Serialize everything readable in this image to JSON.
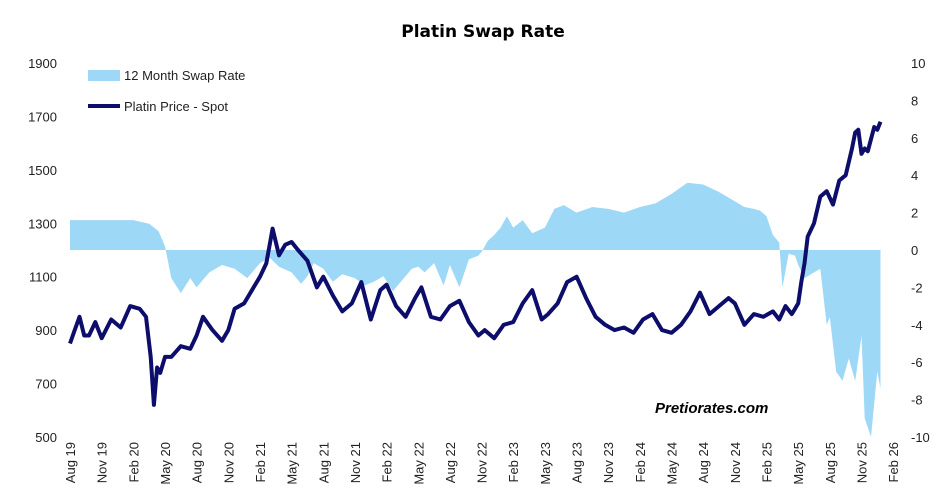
{
  "chart_data": {
    "type": "line",
    "title": "Platin Swap Rate",
    "watermark": "Pretiorates.com",
    "colors": {
      "spot": "#0d0d6b",
      "swap": "#9ed8f7"
    },
    "left_axis": {
      "ylim": [
        500,
        1900
      ],
      "ticks": [
        "1900",
        "1700",
        "1500",
        "1300",
        "1100",
        "900",
        "700",
        "500"
      ]
    },
    "right_axis": {
      "ylim": [
        -10,
        10
      ],
      "ticks": [
        "10",
        "8",
        "6",
        "4",
        "2",
        "0",
        "-2",
        "-4",
        "-6",
        "-8",
        "-10"
      ]
    },
    "x_ticks": [
      "Aug 19",
      "Nov 19",
      "Feb 20",
      "May 20",
      "Aug 20",
      "Nov 20",
      "Feb 21",
      "May 21",
      "Aug 21",
      "Nov 21",
      "Feb 22",
      "May 22",
      "Aug 22",
      "Nov 22",
      "Feb 23",
      "May 23",
      "Aug 23",
      "Nov 23",
      "Feb 24",
      "May 24",
      "Aug 24",
      "Nov 24",
      "Feb 25",
      "May 25",
      "Aug 25",
      "Nov 25",
      "Feb 26"
    ],
    "series": [
      {
        "name": "12 Month Swap Rate",
        "axis": "right",
        "type": "area",
        "x": [
          0.0,
          0.5,
          1.0,
          2.0,
          2.5,
          2.8,
          3.0,
          3.2,
          3.5,
          3.8,
          4.0,
          4.4,
          4.8,
          5.2,
          5.6,
          6.0,
          6.3,
          6.6,
          7.0,
          7.3,
          7.5,
          7.7,
          8.0,
          8.3,
          8.6,
          9.0,
          9.3,
          9.6,
          9.9,
          10.2,
          10.5,
          10.8,
          11.0,
          11.2,
          11.5,
          11.8,
          12.0,
          12.3,
          12.6,
          12.9,
          13.0,
          13.2,
          13.4,
          13.6,
          13.8,
          14.0,
          14.3,
          14.6,
          15.0,
          15.3,
          15.6,
          16.0,
          16.5,
          17.0,
          17.5,
          18.0,
          18.5,
          19.0,
          19.5,
          20.0,
          20.5,
          21.0,
          21.3,
          21.6,
          21.8,
          22.0,
          22.2,
          22.4,
          22.5,
          22.7,
          22.9,
          23.0,
          23.2,
          23.5,
          23.7,
          23.9,
          24.0,
          24.2,
          24.4,
          24.6,
          24.8,
          25.0,
          25.1,
          25.3,
          25.5,
          25.6
        ],
        "values": [
          1.6,
          1.6,
          1.6,
          1.6,
          1.4,
          1.0,
          0.2,
          -1.5,
          -2.3,
          -1.5,
          -2.0,
          -1.2,
          -0.8,
          -1.0,
          -1.5,
          -0.7,
          -0.4,
          -0.9,
          -1.2,
          -1.8,
          -1.4,
          -0.7,
          -1.0,
          -1.7,
          -1.3,
          -1.5,
          -1.9,
          -1.7,
          -1.4,
          -2.2,
          -1.6,
          -1.0,
          -0.9,
          -1.2,
          -0.7,
          -1.9,
          -0.8,
          -2.0,
          -0.5,
          -0.3,
          -0.1,
          0.5,
          0.8,
          1.2,
          1.8,
          1.2,
          1.6,
          0.9,
          1.2,
          2.2,
          2.4,
          2.0,
          2.3,
          2.2,
          2.0,
          2.3,
          2.5,
          3.0,
          3.6,
          3.5,
          3.1,
          2.6,
          2.3,
          2.2,
          2.1,
          1.8,
          0.8,
          0.4,
          -2.0,
          -0.2,
          -0.3,
          -0.8,
          -1.5,
          -1.2,
          -1.0,
          -4.0,
          -3.6,
          -6.5,
          -7.0,
          -5.8,
          -7.0,
          -4.6,
          -9.0,
          -10.0,
          -6.5,
          -7.4
        ]
      },
      {
        "name": "Platin Price - Spot",
        "axis": "left",
        "type": "line",
        "x": [
          0.0,
          0.15,
          0.3,
          0.45,
          0.6,
          0.8,
          1.0,
          1.3,
          1.6,
          1.9,
          2.2,
          2.4,
          2.55,
          2.65,
          2.75,
          2.85,
          3.0,
          3.2,
          3.5,
          3.8,
          4.0,
          4.2,
          4.5,
          4.8,
          5.0,
          5.2,
          5.5,
          5.8,
          6.0,
          6.2,
          6.4,
          6.6,
          6.8,
          7.0,
          7.2,
          7.5,
          7.8,
          8.0,
          8.3,
          8.6,
          8.9,
          9.2,
          9.5,
          9.8,
          10.0,
          10.3,
          10.6,
          10.9,
          11.1,
          11.4,
          11.7,
          12.0,
          12.3,
          12.6,
          12.9,
          13.1,
          13.4,
          13.7,
          14.0,
          14.3,
          14.6,
          14.9,
          15.1,
          15.4,
          15.7,
          16.0,
          16.3,
          16.6,
          16.9,
          17.2,
          17.5,
          17.8,
          18.1,
          18.4,
          18.7,
          19.0,
          19.3,
          19.6,
          19.9,
          20.2,
          20.5,
          20.8,
          21.0,
          21.3,
          21.6,
          21.9,
          22.2,
          22.4,
          22.6,
          22.8,
          22.9,
          23.0,
          23.1,
          23.2,
          23.3,
          23.5,
          23.7,
          23.9,
          24.1,
          24.3,
          24.5,
          24.7,
          24.8,
          24.9,
          25.0,
          25.1,
          25.2,
          25.4,
          25.5,
          25.6
        ],
        "values": [
          850,
          900,
          950,
          880,
          880,
          930,
          870,
          940,
          910,
          990,
          980,
          950,
          800,
          620,
          760,
          740,
          800,
          800,
          840,
          830,
          880,
          950,
          900,
          860,
          900,
          980,
          1000,
          1060,
          1100,
          1150,
          1280,
          1180,
          1220,
          1230,
          1200,
          1160,
          1060,
          1100,
          1030,
          970,
          1000,
          1080,
          940,
          1050,
          1070,
          990,
          950,
          1020,
          1060,
          950,
          940,
          990,
          1010,
          930,
          880,
          900,
          870,
          920,
          930,
          1000,
          1050,
          940,
          960,
          1000,
          1080,
          1100,
          1020,
          950,
          920,
          900,
          910,
          890,
          940,
          960,
          900,
          890,
          920,
          970,
          1040,
          960,
          990,
          1020,
          1000,
          920,
          960,
          950,
          970,
          940,
          990,
          960,
          980,
          1000,
          1080,
          1150,
          1250,
          1300,
          1400,
          1420,
          1370,
          1460,
          1480,
          1580,
          1640,
          1650,
          1560,
          1580,
          1570,
          1660,
          1650,
          1680
        ]
      }
    ]
  }
}
